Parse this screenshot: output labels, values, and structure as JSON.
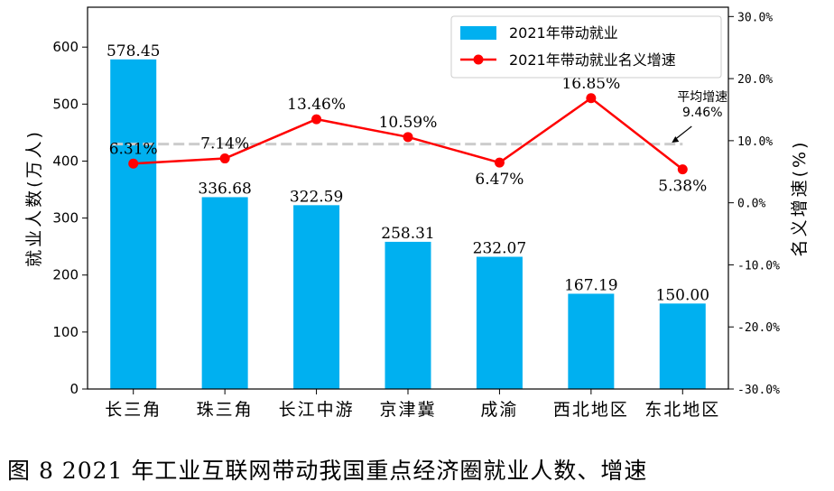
{
  "caption": "图 8   2021 年工业互联网带动我国重点经济圈就业人数、增速",
  "chart_data": {
    "type": "bar+line",
    "categories": [
      "长三角",
      "珠三角",
      "长江中游",
      "京津冀",
      "成渝",
      "西北地区",
      "东北地区"
    ],
    "series": [
      {
        "name": "2021年带动就业",
        "type": "bar",
        "axis": "left",
        "color": "#00b0f0",
        "values": [
          578.45,
          336.68,
          322.59,
          258.31,
          232.07,
          167.19,
          150.0
        ],
        "labels": [
          "578.45",
          "336.68",
          "322.59",
          "258.31",
          "232.07",
          "167.19",
          "150.00"
        ]
      },
      {
        "name": "2021年带动就业名义增速",
        "type": "line",
        "axis": "right",
        "color": "#ff0000",
        "values": [
          6.31,
          7.14,
          13.46,
          10.59,
          6.47,
          16.85,
          5.38
        ],
        "labels": [
          "6.31%",
          "7.14%",
          "13.46%",
          "10.59%",
          "6.47%",
          "16.85%",
          "5.38%"
        ]
      }
    ],
    "ylabel_left": "就业人数(万人)",
    "ylabel_right": "名义增速(%)",
    "ylim_left": [
      0,
      670
    ],
    "ylim_right": [
      -30,
      31.5
    ],
    "yticks_left": [
      "0",
      "100",
      "200",
      "300",
      "400",
      "500",
      "600"
    ],
    "yticks_right": [
      "-30.0%",
      "-20.0%",
      "-10.0%",
      "0.0%",
      "10.0%",
      "20.0%",
      "30.0%"
    ],
    "average_line": {
      "value": 9.46,
      "label_title": "平均增速",
      "label_value": "9.46%",
      "color": "#cccccc"
    },
    "legend_position": "top-right",
    "grid": false
  }
}
